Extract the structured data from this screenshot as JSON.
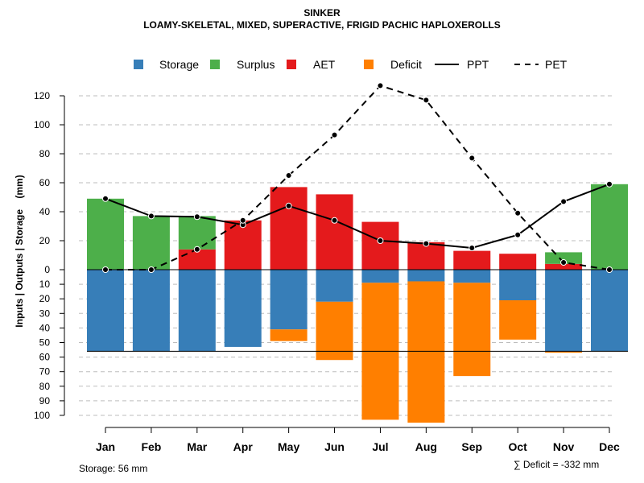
{
  "chart_data": {
    "type": "bar",
    "title": "SINKER",
    "subtitle": "LOAMY-SKELETAL, MIXED, SUPERACTIVE, FRIGID PACHIC HAPLOXEROLLS",
    "ylabel": "Inputs | Outputs | Storage    (mm)",
    "legend": [
      {
        "label": "Storage",
        "kind": "box",
        "color": "#377EB8"
      },
      {
        "label": "Surplus",
        "kind": "box",
        "color": "#4DAF4A"
      },
      {
        "label": "AET",
        "kind": "box",
        "color": "#E41A1C"
      },
      {
        "label": "Deficit",
        "kind": "box",
        "color": "#FF7F00"
      },
      {
        "label": "PPT",
        "kind": "solid",
        "color": "#000000"
      },
      {
        "label": "PET",
        "kind": "dashed",
        "color": "#000000"
      }
    ],
    "categories": [
      "Jan",
      "Feb",
      "Mar",
      "Apr",
      "May",
      "Jun",
      "Jul",
      "Aug",
      "Sep",
      "Oct",
      "Nov",
      "Dec"
    ],
    "upper_ylim": [
      0,
      130
    ],
    "upper_ticks": [
      0,
      20,
      40,
      60,
      80,
      100,
      120
    ],
    "lower_ylim": [
      0,
      100
    ],
    "lower_ticks": [
      0,
      10,
      20,
      30,
      40,
      50,
      60,
      70,
      80,
      90,
      100
    ],
    "series_upper": [
      {
        "name": "AET",
        "color": "#E41A1C",
        "values": [
          0,
          0,
          14,
          34,
          57,
          52,
          33,
          19,
          13,
          11,
          4,
          0
        ]
      },
      {
        "name": "Surplus",
        "color": "#4DAF4A",
        "values": [
          49,
          37,
          23,
          0,
          0,
          0,
          0,
          0,
          0,
          0,
          8,
          59
        ]
      }
    ],
    "series_lower": [
      {
        "name": "Storage",
        "color": "#377EB8",
        "values": [
          56,
          56,
          56,
          53,
          41,
          22,
          9,
          8,
          9,
          21,
          56,
          56
        ]
      },
      {
        "name": "Deficit",
        "color": "#FF7F00",
        "values": [
          0,
          0,
          0,
          0,
          8,
          40,
          94,
          97,
          64,
          27,
          1,
          0
        ]
      }
    ],
    "lines": [
      {
        "name": "PPT",
        "style": "solid",
        "values": [
          49,
          37,
          36.5,
          31,
          44,
          34,
          20,
          18,
          15,
          24,
          47,
          59
        ]
      },
      {
        "name": "PET",
        "style": "dashed",
        "values": [
          0,
          0,
          14,
          34,
          65,
          93,
          127,
          117,
          77,
          39,
          5,
          0
        ]
      }
    ],
    "storage_capacity": 56
  },
  "footer": {
    "storage_text": "Storage: 56 mm",
    "deficit_text": "∑ Deficit = -332 mm"
  }
}
